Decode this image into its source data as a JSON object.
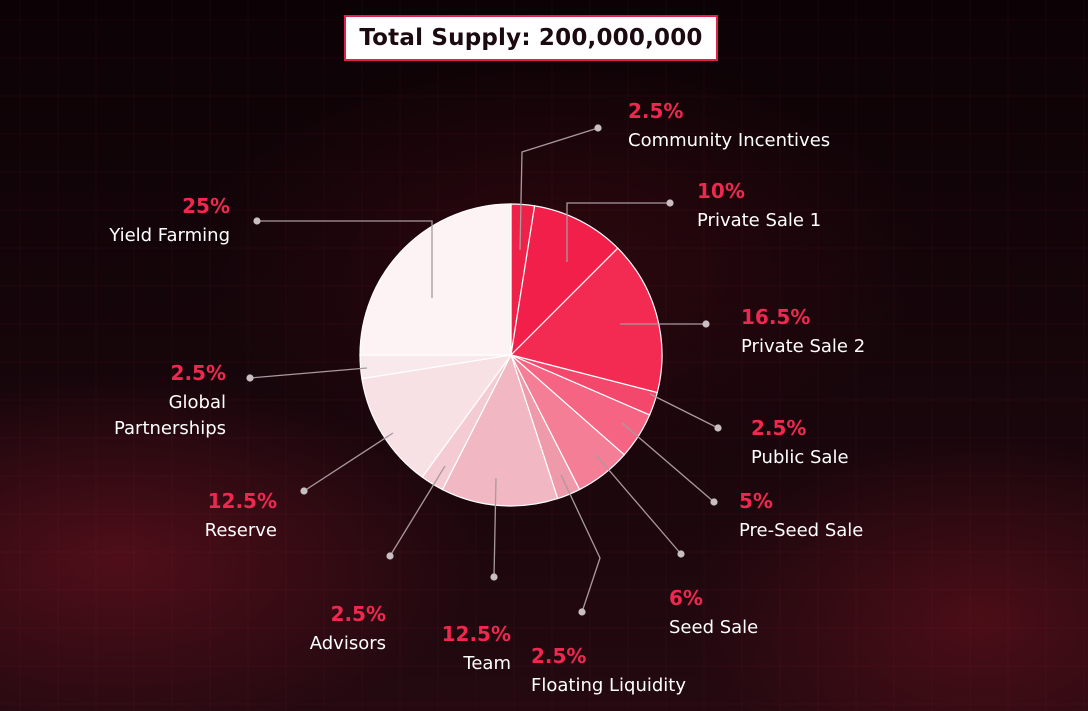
{
  "header": {
    "title": "Total Supply: 200,000,000"
  },
  "colors": {
    "accent": "#ef2850",
    "background": "#120408",
    "title_bg": "#ffffff"
  },
  "chart_data": {
    "type": "pie",
    "title": "Total Supply: 200,000,000",
    "slices": [
      {
        "label": "Community Incentives",
        "label_lines": [
          "Community Incentives"
        ],
        "pct_text": "2.5%",
        "value": 2.5,
        "color": "#ee2149"
      },
      {
        "label": "Private Sale 1",
        "label_lines": [
          "Private Sale 1"
        ],
        "pct_text": "10%",
        "value": 10,
        "color": "#f11f4a"
      },
      {
        "label": "Private Sale 2",
        "label_lines": [
          "Private Sale 2"
        ],
        "pct_text": "16.5%",
        "value": 16.5,
        "color": "#f32a52"
      },
      {
        "label": "Public Sale",
        "label_lines": [
          "Public Sale"
        ],
        "pct_text": "2.5%",
        "value": 2.5,
        "color": "#f3476b"
      },
      {
        "label": "Pre-Seed Sale",
        "label_lines": [
          "Pre-Seed Sale"
        ],
        "pct_text": "5%",
        "value": 5,
        "color": "#f56483"
      },
      {
        "label": "Seed Sale",
        "label_lines": [
          "Seed Sale"
        ],
        "pct_text": "6%",
        "value": 6,
        "color": "#f47e96"
      },
      {
        "label": "Floating Liquidity",
        "label_lines": [
          "Floating Liquidity"
        ],
        "pct_text": "2.5%",
        "value": 2.5,
        "color": "#ee9aab"
      },
      {
        "label": "Team",
        "label_lines": [
          "Team"
        ],
        "pct_text": "12.5%",
        "value": 12.5,
        "color": "#f1b7c3"
      },
      {
        "label": "Advisors",
        "label_lines": [
          "Advisors"
        ],
        "pct_text": "2.5%",
        "value": 2.5,
        "color": "#f5cbd3"
      },
      {
        "label": "Reserve",
        "label_lines": [
          "Reserve"
        ],
        "pct_text": "12.5%",
        "value": 12.5,
        "color": "#f8e1e5"
      },
      {
        "label": "Global Partnerships",
        "label_lines": [
          "Global",
          "Partnerships"
        ],
        "pct_text": "2.5%",
        "value": 2.5,
        "color": "#f8e9ec"
      },
      {
        "label": "Yield Farming",
        "label_lines": [
          "Yield Farming"
        ],
        "pct_text": "25%",
        "value": 25,
        "color": "#fdf3f5"
      }
    ],
    "legend": "none"
  }
}
